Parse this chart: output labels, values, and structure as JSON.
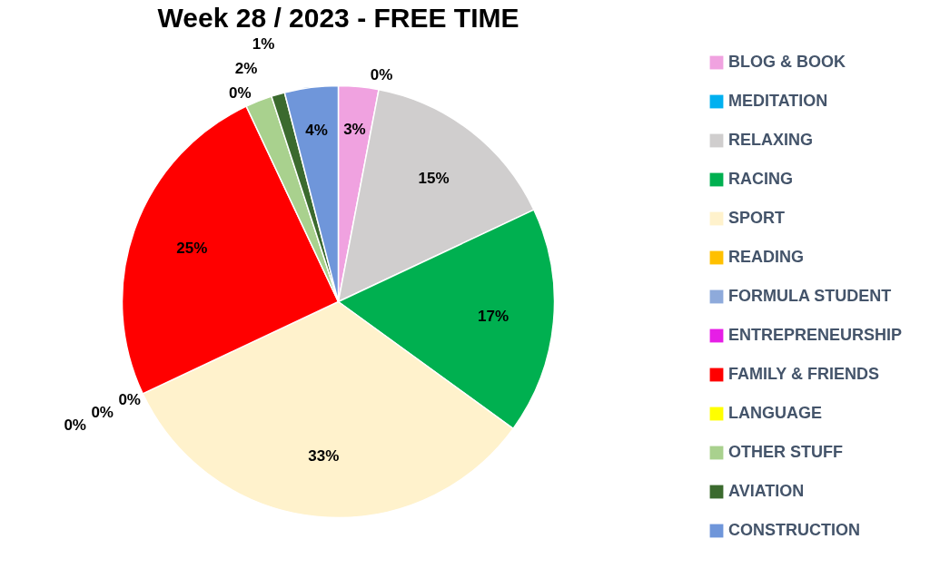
{
  "chart_data": {
    "type": "pie",
    "title": "Week 28 / 2023 - FREE TIME",
    "categories": [
      "BLOG & BOOK",
      "MEDITATION",
      "RELAXING",
      "RACING",
      "SPORT",
      "READING",
      "FORMULA STUDENT",
      "ENTREPRENEURSHIP",
      "FAMILY & FRIENDS",
      "LANGUAGE",
      "OTHER STUFF",
      "AVIATION",
      "CONSTRUCTION"
    ],
    "values": [
      3,
      0,
      15,
      17,
      33,
      0,
      0,
      0,
      25,
      0,
      2,
      1,
      4
    ],
    "value_labels": [
      "3%",
      "0%",
      "15%",
      "17%",
      "33%",
      "0%",
      "0%",
      "0%",
      "25%",
      "0%",
      "2%",
      "1%",
      "4%"
    ],
    "colors": [
      "#f0a2e0",
      "#00b0f0",
      "#d0cece",
      "#00b050",
      "#fff2cc",
      "#ffc000",
      "#8eaadb",
      "#e61ee6",
      "#ff0000",
      "#ffff00",
      "#a9d18e",
      "#3b6a2e",
      "#6f96da"
    ],
    "legend": "right"
  }
}
